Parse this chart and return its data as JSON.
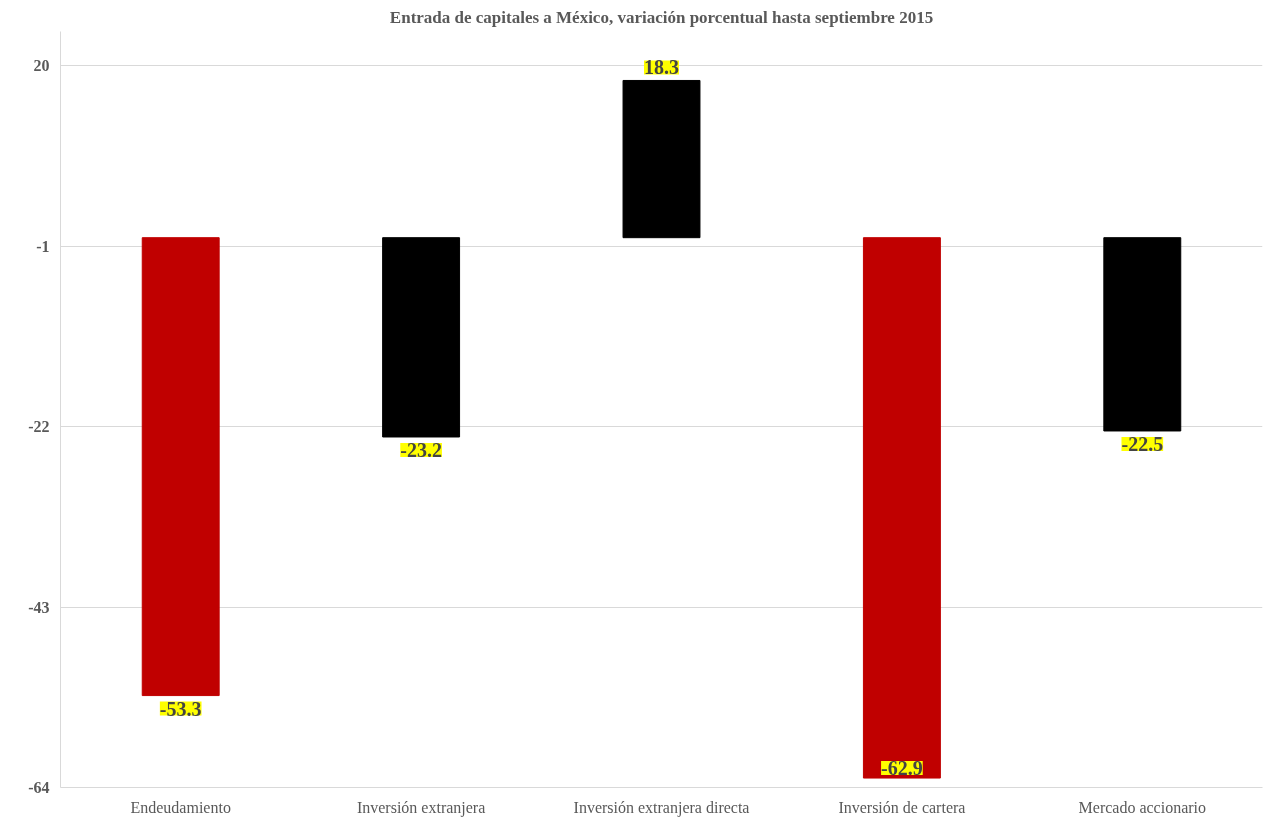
{
  "chart_data": {
    "type": "bar",
    "title": "Entrada de capitales a México, variación porcentual hasta septiembre 2015",
    "categories": [
      "Endeudamiento",
      "Inversión extranjera",
      "Inversión extranjera directa",
      "Inversión de cartera",
      "Mercado accionario"
    ],
    "values": [
      -53.3,
      -23.2,
      18.3,
      -62.9,
      -22.5
    ],
    "colors": [
      "#c00000",
      "#000000",
      "#000000",
      "#c00000",
      "#000000"
    ],
    "ylim": [
      -64,
      24
    ],
    "yticks": [
      20,
      -1,
      -22,
      -43,
      -64
    ],
    "grid": "y",
    "data_labels": true
  }
}
